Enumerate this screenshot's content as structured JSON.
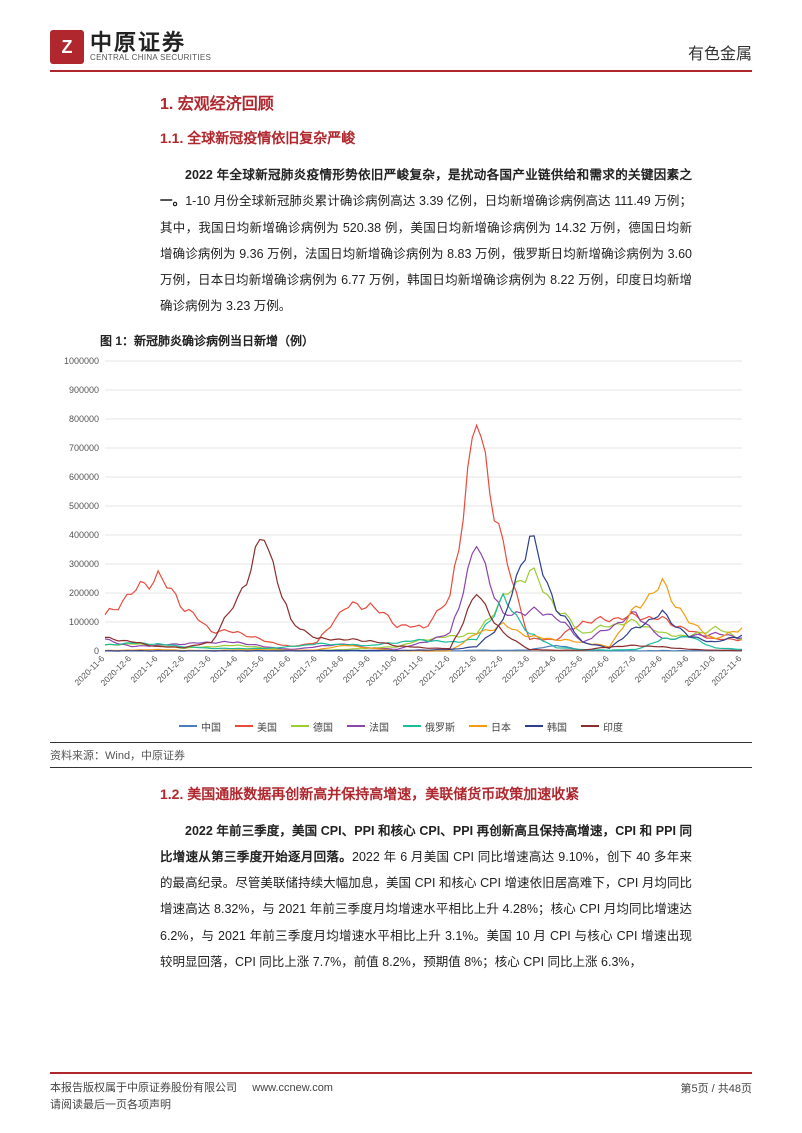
{
  "header": {
    "logo_cn": "中原证券",
    "logo_en": "CENTRAL CHINA SECURITIES",
    "category": "有色金属"
  },
  "section1": {
    "h1": "1. 宏观经济回顾",
    "h2_1": "1.1. 全球新冠疫情依旧复杂严峻",
    "p1_bold": "2022 年全球新冠肺炎疫情形势依旧严峻复杂，是扰动各国产业链供给和需求的关键因素之一。",
    "p1_rest": "1-10 月份全球新冠肺炎累计确诊病例高达 3.39 亿例，日均新增确诊病例高达 111.49 万例；其中，我国日均新增确诊病例为 520.38 例，美国日均新增确诊病例为 14.32 万例，德国日均新增确诊病例为 9.36 万例，法国日均新增确诊病例为 8.83 万例，俄罗斯日均新增确诊病例为 3.60 万例，日本日均新增确诊病例为 6.77 万例，韩国日均新增确诊病例为 8.22 万例，印度日均新增确诊病例为 3.23 万例。",
    "fig1_label": "图 1：新冠肺炎确诊病例当日新增（例）",
    "source": "资料来源：Wind，中原证券",
    "h2_2": "1.2. 美国通胀数据再创新高并保持高增速，美联储货币政策加速收紧",
    "p2_bold": "2022 年前三季度，美国 CPI、PPI 和核心 CPI、PPI 再创新高且保持高增速，CPI 和 PPI 同比增速从第三季度开始逐月回落。",
    "p2_rest": "2022 年 6 月美国 CPI 同比增速高达 9.10%，创下 40 多年来的最高纪录。尽管美联储持续大幅加息，美国 CPI 和核心 CPI 增速依旧居高难下，CPI 月均同比增速高达 8.32%，与 2021 年前三季度月均增速水平相比上升 4.28%；核心 CPI 月均同比增速达 6.2%，与 2021 年前三季度月均增速水平相比上升 3.1%。美国 10 月 CPI 与核心 CPI 增速出现较明显回落，CPI 同比上涨 7.7%，前值 8.2%，预期值 8%；核心 CPI 同比上涨 6.3%，"
  },
  "chart": {
    "type": "line",
    "ylim": [
      0,
      1000000
    ],
    "ytick_step": 100000,
    "background_color": "#ffffff",
    "grid_color": "#e5e5e5",
    "axis_color": "#888888",
    "label_fontsize": 9,
    "x_labels": [
      "2020-11-6",
      "2020-12-6",
      "2021-1-6",
      "2021-2-6",
      "2021-3-6",
      "2021-4-6",
      "2021-5-6",
      "2021-6-6",
      "2021-7-6",
      "2021-8-6",
      "2021-9-6",
      "2021-10-6",
      "2021-11-6",
      "2021-12-6",
      "2022-1-6",
      "2022-2-6",
      "2022-3-6",
      "2022-4-6",
      "2022-5-6",
      "2022-6-6",
      "2022-7-6",
      "2022-8-6",
      "2022-9-6",
      "2022-10-6",
      "2022-11-6"
    ],
    "series": [
      {
        "name": "中国",
        "color": "#4a7ebb",
        "data": [
          200,
          300,
          400,
          500,
          300,
          200,
          150,
          100,
          80,
          100,
          120,
          90,
          100,
          150,
          3000,
          2000,
          4000,
          20000,
          3000,
          800,
          500,
          1500,
          1000,
          2000,
          3000
        ]
      },
      {
        "name": "美国",
        "color": "#e74c3c",
        "data": [
          120000,
          200000,
          260000,
          150000,
          70000,
          65000,
          35000,
          15000,
          30000,
          150000,
          160000,
          90000,
          80000,
          180000,
          800000,
          350000,
          40000,
          40000,
          100000,
          110000,
          120000,
          110000,
          70000,
          40000,
          40000
        ]
      },
      {
        "name": "德国",
        "color": "#9acd32",
        "data": [
          20000,
          25000,
          18000,
          10000,
          15000,
          20000,
          10000,
          2000,
          2000,
          5000,
          10000,
          15000,
          40000,
          50000,
          60000,
          180000,
          280000,
          150000,
          60000,
          90000,
          100000,
          60000,
          50000,
          80000,
          40000
        ]
      },
      {
        "name": "法国",
        "color": "#8e44ad",
        "data": [
          40000,
          15000,
          20000,
          25000,
          30000,
          30000,
          15000,
          5000,
          15000,
          25000,
          10000,
          6000,
          30000,
          60000,
          370000,
          120000,
          140000,
          120000,
          30000,
          80000,
          130000,
          40000,
          50000,
          60000,
          45000
        ]
      },
      {
        "name": "俄罗斯",
        "color": "#1abc9c",
        "data": [
          20000,
          28000,
          24000,
          15000,
          9000,
          8500,
          8500,
          15000,
          25000,
          22000,
          19000,
          30000,
          38000,
          30000,
          40000,
          180000,
          60000,
          12000,
          5000,
          3000,
          5000,
          40000,
          50000,
          10000,
          6000
        ]
      },
      {
        "name": "日本",
        "color": "#f39c12",
        "data": [
          1500,
          3000,
          5000,
          2000,
          1500,
          4000,
          4500,
          2000,
          4000,
          20000,
          10000,
          1000,
          200,
          500,
          60000,
          90000,
          50000,
          40000,
          30000,
          15000,
          150000,
          230000,
          100000,
          40000,
          80000
        ]
      },
      {
        "name": "韩国",
        "color": "#2c3e8f",
        "data": [
          300,
          800,
          600,
          400,
          500,
          600,
          600,
          600,
          1500,
          2000,
          2000,
          2000,
          3000,
          5000,
          15000,
          100000,
          400000,
          150000,
          30000,
          10000,
          80000,
          130000,
          50000,
          30000,
          55000
        ]
      },
      {
        "name": "印度",
        "color": "#8b2e2e",
        "data": [
          45000,
          32000,
          15000,
          12000,
          30000,
          180000,
          400000,
          100000,
          42000,
          40000,
          35000,
          18000,
          11000,
          8000,
          200000,
          60000,
          5000,
          2500,
          3000,
          14000,
          19000,
          14000,
          6000,
          2500,
          1000
        ]
      }
    ]
  },
  "footer": {
    "line1": "本报告版权属于中原证券股份有限公司",
    "line2": "请阅读最后一页各项声明",
    "url": "www.ccnew.com",
    "page": "第5页 / 共48页"
  }
}
